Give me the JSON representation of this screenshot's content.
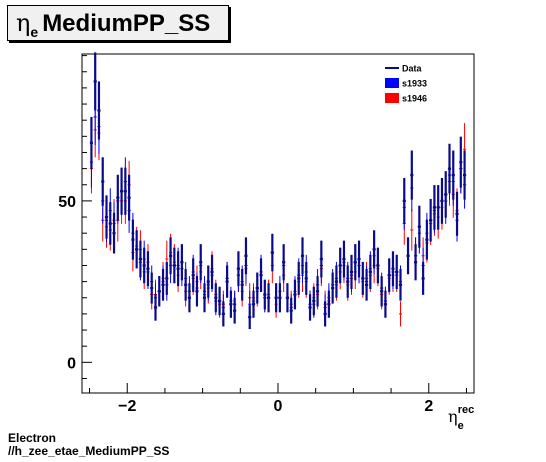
{
  "title": {
    "greek": "η",
    "subscript": "e",
    "text": "MediumPP_SS"
  },
  "x_title": {
    "greek": "η",
    "subscript": "e",
    "superscript": "rec"
  },
  "footer": {
    "line1": "Electron",
    "line2": "//h_zee_etae_MediumPP_SS"
  },
  "colors": {
    "Data": "#0a0a8c",
    "s1933": "#0000ff",
    "s1946": "#ff0000"
  },
  "chart_data": {
    "type": "scatter",
    "xlim": [
      -2.6,
      2.6
    ],
    "ylim": [
      -9.5,
      95.5
    ],
    "x_ticks": [
      -2,
      0,
      2
    ],
    "y_ticks": [
      0,
      50
    ],
    "grid": false,
    "legend_position": "top-right",
    "legend": [
      "Data",
      "s1933",
      "s1946"
    ],
    "series": [
      {
        "name": "Data",
        "x": [
          -2.475,
          -2.425,
          -2.375,
          -2.325,
          -2.275,
          -2.225,
          -2.175,
          -2.125,
          -2.075,
          -2.025,
          -1.975,
          -1.925,
          -1.875,
          -1.825,
          -1.775,
          -1.725,
          -1.675,
          -1.625,
          -1.575,
          -1.525,
          -1.475,
          -1.425,
          -1.375,
          -1.325,
          -1.275,
          -1.225,
          -1.175,
          -1.125,
          -1.075,
          -1.025,
          -0.975,
          -0.925,
          -0.875,
          -0.825,
          -0.775,
          -0.725,
          -0.675,
          -0.625,
          -0.575,
          -0.525,
          -0.475,
          -0.425,
          -0.375,
          -0.325,
          -0.275,
          -0.225,
          -0.175,
          -0.125,
          -0.075,
          -0.025,
          0.025,
          0.075,
          0.125,
          0.175,
          0.225,
          0.275,
          0.325,
          0.375,
          0.425,
          0.475,
          0.525,
          0.575,
          0.625,
          0.675,
          0.725,
          0.775,
          0.825,
          0.875,
          0.925,
          0.975,
          1.025,
          1.075,
          1.125,
          1.175,
          1.225,
          1.275,
          1.325,
          1.375,
          1.425,
          1.475,
          1.525,
          1.575,
          1.625,
          1.675,
          1.725,
          1.775,
          1.825,
          1.875,
          1.925,
          1.975,
          2.025,
          2.075,
          2.125,
          2.175,
          2.225,
          2.275,
          2.325,
          2.375,
          2.425,
          2.475
        ],
        "y": [
          68,
          87,
          78,
          56,
          45,
          43,
          40,
          51,
          53,
          53,
          51,
          38,
          35,
          32,
          30,
          29,
          23,
          17,
          22,
          24,
          26,
          33,
          30,
          29,
          31,
          24,
          20,
          27,
          22,
          31,
          20,
          25,
          28,
          20,
          19,
          15,
          25,
          18,
          16,
          29,
          24,
          33,
          14,
          18,
          23,
          27,
          21,
          20,
          34,
          20,
          20,
          31,
          20,
          16,
          21,
          26,
          33,
          26,
          17,
          19,
          22,
          32,
          15,
          18,
          23,
          25,
          30,
          32,
          25,
          28,
          31,
          32,
          26,
          24,
          28,
          35,
          30,
          22,
          18,
          27,
          29,
          28,
          24,
          50,
          33,
          58,
          31,
          42,
          26,
          38,
          44,
          48,
          48,
          50,
          52,
          60,
          58,
          46,
          62,
          58
        ],
        "yerr": [
          8,
          9,
          9,
          7.5,
          6.7,
          6.6,
          6.3,
          7.1,
          7.3,
          7.3,
          7.1,
          6.2,
          5.9,
          5.7,
          5.5,
          5.4,
          4.8,
          4.1,
          4.7,
          4.9,
          5.1,
          5.7,
          5.5,
          5.4,
          5.6,
          4.9,
          4.5,
          5.2,
          4.7,
          5.6,
          4.5,
          5,
          5.3,
          4.5,
          4.4,
          3.9,
          5,
          4.2,
          4,
          5.4,
          4.9,
          5.7,
          3.7,
          4.2,
          4.8,
          5.2,
          4.6,
          4.5,
          5.8,
          4.5,
          4.5,
          5.6,
          4.5,
          4,
          4.6,
          5.1,
          5.7,
          5.1,
          4.1,
          4.4,
          4.7,
          5.7,
          3.9,
          4.2,
          4.8,
          5,
          5.5,
          5.7,
          5,
          5.3,
          5.6,
          5.7,
          5.1,
          4.9,
          5.3,
          5.9,
          5.5,
          4.7,
          4.2,
          5.2,
          5.4,
          5.3,
          4.9,
          7.1,
          5.7,
          7.6,
          5.6,
          6.5,
          5.1,
          6.2,
          6.6,
          6.9,
          6.9,
          7.1,
          7.2,
          7.7,
          7.6,
          6.8,
          7.9,
          7.6
        ]
      },
      {
        "name": "s1933",
        "x": [
          -2.475,
          -2.425,
          -2.375,
          -2.325,
          -2.275,
          -2.225,
          -2.175,
          -2.125,
          -2.075,
          -2.025,
          -1.975,
          -1.925,
          -1.875,
          -1.825,
          -1.775,
          -1.725,
          -1.675,
          -1.625,
          -1.575,
          -1.525,
          -1.475,
          -1.425,
          -1.375,
          -1.325,
          -1.275,
          -1.225,
          -1.175,
          -1.125,
          -1.075,
          -1.025,
          -0.975,
          -0.925,
          -0.875,
          -0.825,
          -0.775,
          -0.725,
          -0.675,
          -0.625,
          -0.575,
          -0.525,
          -0.475,
          -0.425,
          -0.375,
          -0.325,
          -0.275,
          -0.225,
          -0.175,
          -0.125,
          -0.075,
          -0.025,
          0.025,
          0.075,
          0.125,
          0.175,
          0.225,
          0.275,
          0.325,
          0.375,
          0.425,
          0.475,
          0.525,
          0.575,
          0.625,
          0.675,
          0.725,
          0.775,
          0.825,
          0.875,
          0.925,
          0.975,
          1.025,
          1.075,
          1.125,
          1.175,
          1.225,
          1.275,
          1.325,
          1.375,
          1.425,
          1.475,
          1.525,
          1.575,
          1.625,
          1.675,
          1.725,
          1.775,
          1.825,
          1.875,
          1.925,
          1.975,
          2.025,
          2.075,
          2.125,
          2.175,
          2.225,
          2.275,
          2.325,
          2.375,
          2.425,
          2.475
        ],
        "y": [
          62,
          76,
          73,
          50,
          44,
          47,
          43,
          50,
          53,
          56,
          47,
          40,
          35,
          31,
          32,
          28,
          25,
          20,
          22,
          25,
          24,
          30,
          30,
          30,
          29,
          26,
          22,
          28,
          23,
          30,
          22,
          24,
          27,
          19,
          19,
          17,
          26,
          19,
          18,
          27,
          25,
          30,
          18,
          19,
          23,
          28,
          20,
          20,
          34,
          20,
          22,
          30,
          20,
          17,
          22,
          27,
          30,
          28,
          18,
          18,
          24,
          30,
          17,
          20,
          24,
          26,
          30,
          31,
          26,
          27,
          31,
          30,
          26,
          25,
          29,
          33,
          30,
          23,
          19,
          27,
          28,
          28,
          25,
          48,
          33,
          54,
          33,
          40,
          30,
          40,
          44,
          47,
          48,
          50,
          50,
          58,
          56,
          44,
          60,
          55
        ],
        "yerr": [
          7.9,
          8.7,
          8.5,
          7.1,
          6.6,
          6.9,
          6.6,
          7.1,
          7.3,
          7.5,
          6.9,
          6.3,
          5.9,
          5.6,
          5.7,
          5.3,
          5,
          4.5,
          4.7,
          5,
          4.9,
          5.5,
          5.5,
          5.5,
          5.4,
          5.1,
          4.7,
          5.3,
          4.8,
          5.5,
          4.7,
          4.9,
          5.2,
          4.4,
          4.4,
          4.1,
          5.1,
          4.4,
          4.2,
          5.2,
          5,
          5.5,
          4.2,
          4.4,
          4.8,
          5.3,
          4.5,
          4.5,
          5.8,
          4.5,
          4.7,
          5.5,
          4.5,
          4.1,
          4.7,
          5.2,
          5.5,
          5.3,
          4.2,
          4.2,
          4.9,
          5.5,
          4.1,
          4.5,
          4.9,
          5.1,
          5.5,
          5.6,
          5.1,
          5.2,
          5.6,
          5.5,
          5.1,
          5,
          5.4,
          5.7,
          5.5,
          4.8,
          4.4,
          5.2,
          5.3,
          5.3,
          5,
          6.9,
          5.7,
          7.3,
          5.7,
          6.3,
          5.5,
          6.3,
          6.6,
          6.9,
          6.9,
          7.1,
          7.1,
          7.6,
          7.5,
          6.6,
          7.7,
          7.4
        ]
      },
      {
        "name": "s1946",
        "x": [
          -2.475,
          -2.425,
          -2.375,
          -2.325,
          -2.275,
          -2.225,
          -2.175,
          -2.125,
          -2.075,
          -2.025,
          -1.975,
          -1.925,
          -1.875,
          -1.825,
          -1.775,
          -1.725,
          -1.675,
          -1.625,
          -1.575,
          -1.525,
          -1.475,
          -1.425,
          -1.375,
          -1.325,
          -1.275,
          -1.225,
          -1.175,
          -1.125,
          -1.075,
          -1.025,
          -0.975,
          -0.925,
          -0.875,
          -0.825,
          -0.775,
          -0.725,
          -0.675,
          -0.625,
          -0.575,
          -0.525,
          -0.475,
          -0.425,
          -0.375,
          -0.325,
          -0.275,
          -0.225,
          -0.175,
          -0.125,
          -0.075,
          -0.025,
          0.025,
          0.075,
          0.125,
          0.175,
          0.225,
          0.275,
          0.325,
          0.375,
          0.425,
          0.475,
          0.525,
          0.575,
          0.625,
          0.675,
          0.725,
          0.775,
          0.825,
          0.875,
          0.925,
          0.975,
          1.025,
          1.075,
          1.125,
          1.175,
          1.225,
          1.275,
          1.325,
          1.375,
          1.425,
          1.475,
          1.525,
          1.575,
          1.625,
          1.675,
          1.725,
          1.775,
          1.825,
          1.875,
          1.925,
          1.975,
          2.025,
          2.075,
          2.125,
          2.175,
          2.225,
          2.275,
          2.325,
          2.375,
          2.425,
          2.475
        ],
        "y": [
          60,
          72,
          71,
          44,
          42,
          41,
          44,
          44,
          50,
          50,
          55,
          34,
          36,
          35,
          28,
          31,
          21,
          21,
          22,
          26,
          32,
          34,
          31,
          27,
          31,
          22,
          20,
          26,
          25,
          28,
          21,
          23,
          29,
          21,
          18,
          18,
          26,
          18,
          18,
          27,
          22,
          29,
          20,
          20,
          22,
          27,
          20,
          21,
          30,
          18,
          20,
          27,
          20,
          18,
          21,
          25,
          27,
          25,
          18,
          20,
          21,
          29,
          18,
          19,
          23,
          24,
          28,
          30,
          24,
          26,
          28,
          30,
          25,
          26,
          27,
          30,
          29,
          21,
          19,
          26,
          27,
          27,
          15,
          43,
          33,
          41,
          33,
          42,
          33,
          37,
          43,
          46,
          45,
          48,
          52,
          56,
          52,
          47,
          60,
          66
        ],
        "yerr": [
          7.7,
          8.5,
          8.4,
          6.6,
          6.5,
          6.4,
          6.6,
          6.6,
          7.1,
          7.1,
          7.4,
          5.8,
          6,
          5.9,
          5.3,
          5.6,
          4.6,
          4.6,
          4.7,
          5.1,
          5.7,
          5.8,
          5.6,
          5.2,
          5.6,
          4.7,
          4.5,
          5.1,
          5,
          5.3,
          4.6,
          4.8,
          5.4,
          4.6,
          4.2,
          4.2,
          5.1,
          4.2,
          4.2,
          5.2,
          4.7,
          5.4,
          4.5,
          4.5,
          4.7,
          5.2,
          4.5,
          4.6,
          5.5,
          4.2,
          4.5,
          5.2,
          4.5,
          4.2,
          4.6,
          5,
          5.2,
          5,
          4.2,
          4.5,
          4.6,
          5.4,
          4.2,
          4.4,
          4.8,
          4.9,
          5.3,
          5.5,
          4.9,
          5.1,
          5.3,
          5.5,
          5,
          5.1,
          5.2,
          5.5,
          5.4,
          4.6,
          4.4,
          5.1,
          5.2,
          5.2,
          3.9,
          6.6,
          5.7,
          6.4,
          5.7,
          6.5,
          5.7,
          6.1,
          6.6,
          6.8,
          6.7,
          6.9,
          7.2,
          7.5,
          7.2,
          6.9,
          7.7,
          8.1
        ]
      }
    ]
  }
}
